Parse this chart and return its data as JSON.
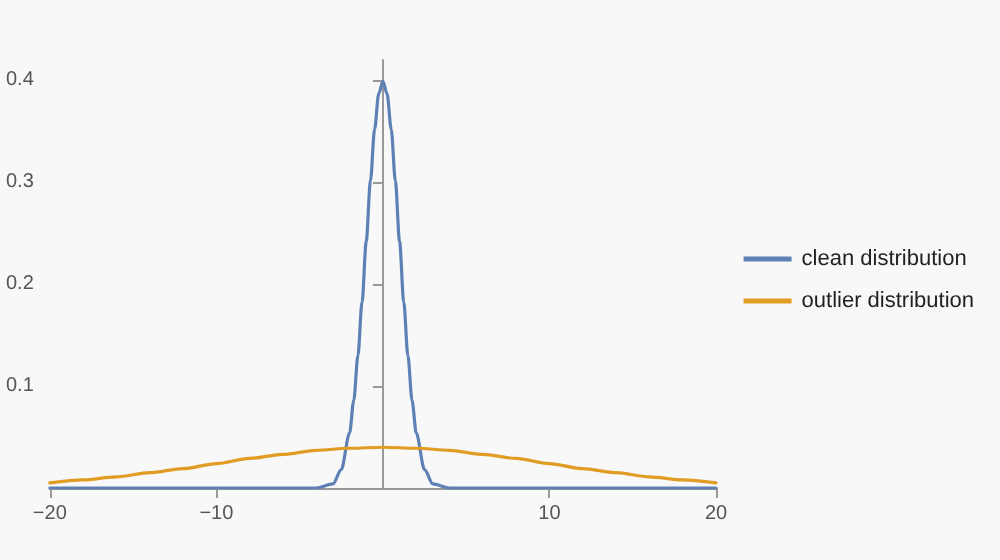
{
  "chart_data": {
    "type": "line",
    "xlim": [
      -20,
      20
    ],
    "xticks": [
      -20,
      -10,
      10,
      20
    ],
    "ylim": [
      0,
      0.42
    ],
    "yticks": [
      0.1,
      0.2,
      0.3,
      0.4
    ],
    "grid": false,
    "legend": "right",
    "marker": "none",
    "line_style": "solid",
    "series": [
      {
        "name": "clean distribution",
        "color": "#5e81b5",
        "x": [
          -20,
          -10,
          -5,
          -4,
          -3,
          -2.5,
          -2,
          -1.75,
          -1.5,
          -1.25,
          -1,
          -0.75,
          -0.5,
          -0.25,
          0,
          0.25,
          0.5,
          0.75,
          1,
          1.25,
          1.5,
          1.75,
          2,
          2.5,
          3,
          4,
          5,
          10,
          20
        ],
        "values": [
          0,
          0,
          0,
          0,
          0.004,
          0.018,
          0.054,
          0.086,
          0.13,
          0.183,
          0.242,
          0.301,
          0.352,
          0.387,
          0.399,
          0.387,
          0.352,
          0.301,
          0.242,
          0.183,
          0.13,
          0.086,
          0.054,
          0.018,
          0.004,
          0,
          0,
          0,
          0
        ]
      },
      {
        "name": "outlier distribution",
        "color": "#e19c24",
        "x": [
          -20,
          -18,
          -16,
          -14,
          -12,
          -10,
          -8,
          -6,
          -4,
          -2,
          0,
          2,
          4,
          6,
          8,
          10,
          12,
          14,
          16,
          18,
          20
        ],
        "values": [
          0.005,
          0.008,
          0.011,
          0.015,
          0.019,
          0.024,
          0.029,
          0.033,
          0.037,
          0.039,
          0.04,
          0.039,
          0.037,
          0.033,
          0.029,
          0.024,
          0.019,
          0.015,
          0.011,
          0.008,
          0.005
        ]
      }
    ]
  }
}
